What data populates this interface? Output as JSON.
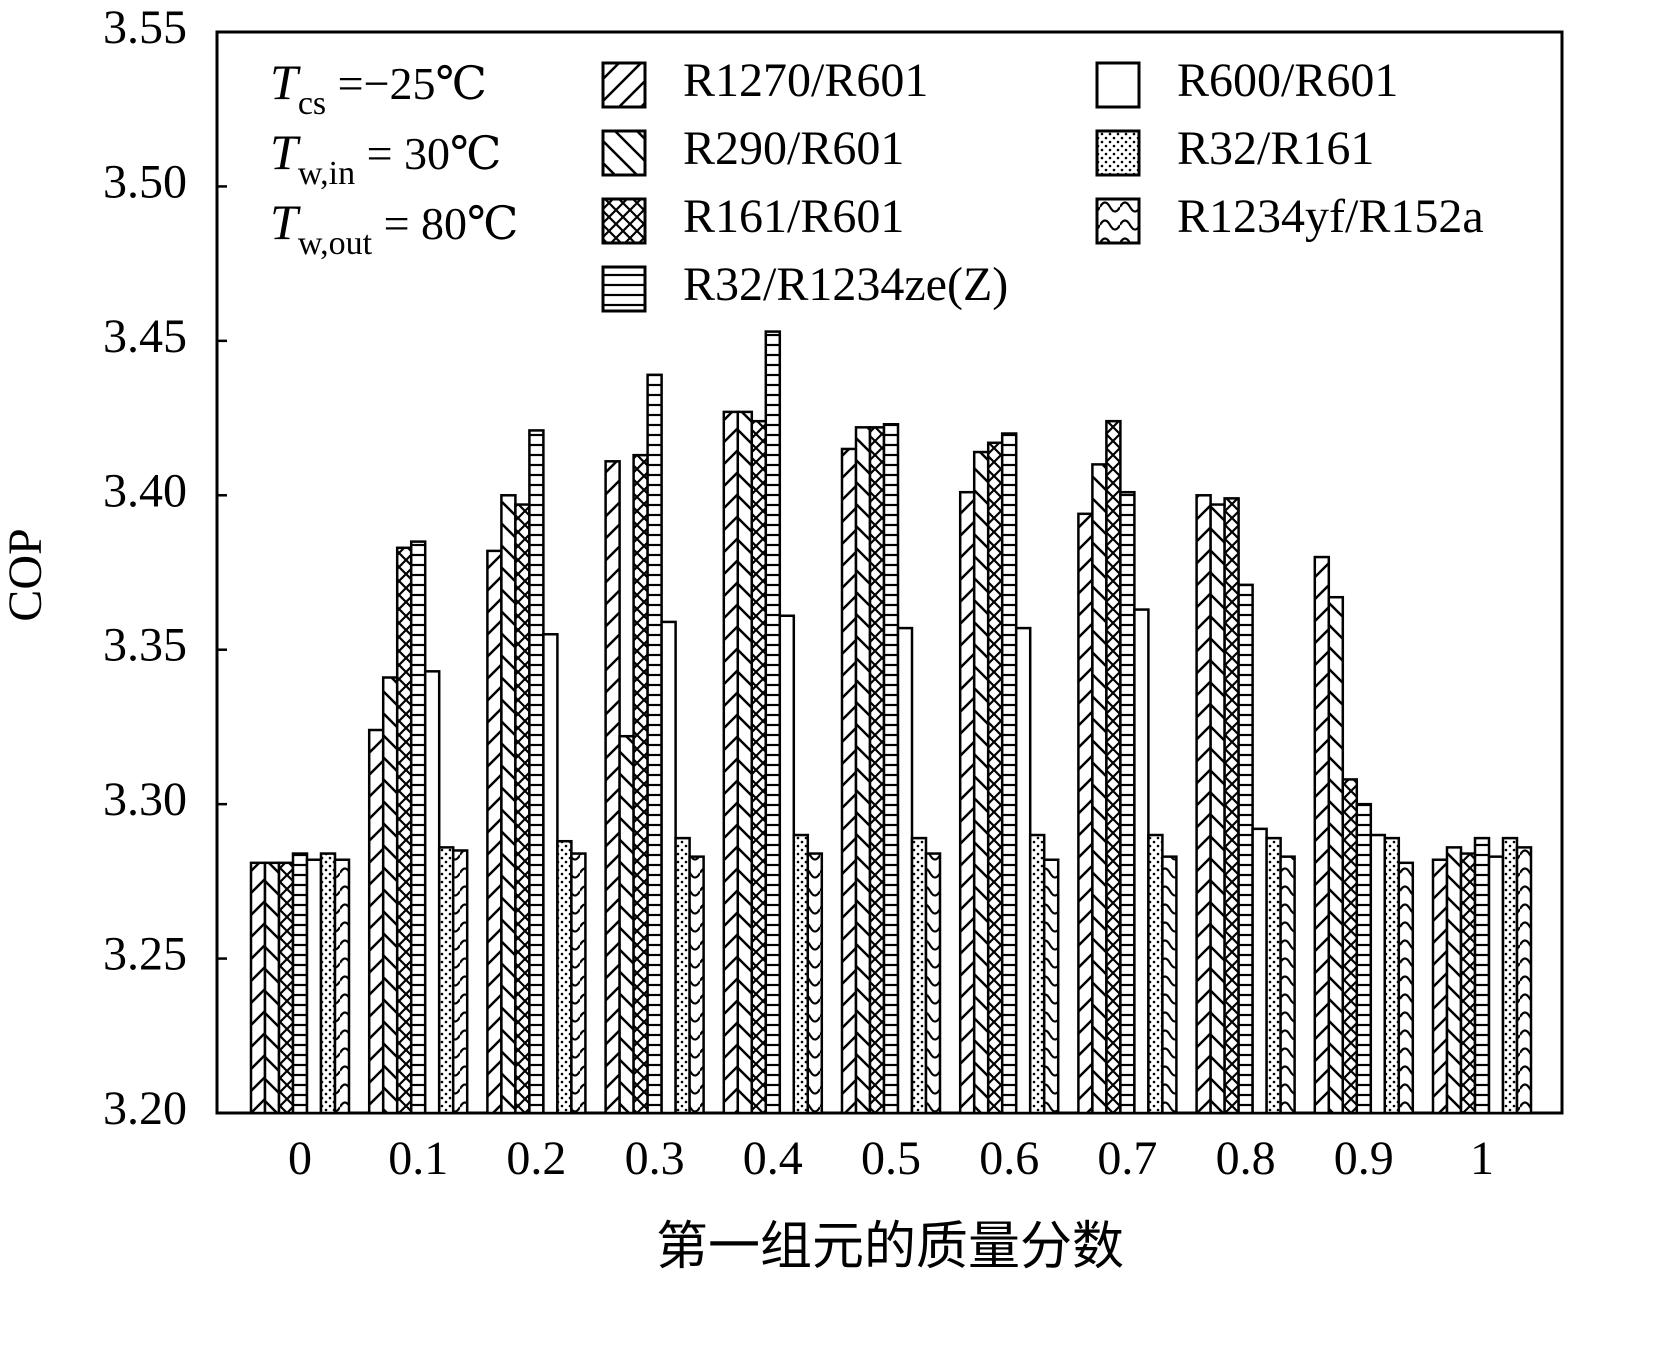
{
  "chart_data": {
    "type": "bar",
    "ylabel": "COP",
    "xlabel": "第一组元的质量分数",
    "annotations": [
      {
        "symbol": "T",
        "sub": "cs",
        "text": " =−25℃"
      },
      {
        "symbol": "T",
        "sub": "w,in",
        "text": " = 30℃"
      },
      {
        "symbol": "T",
        "sub": "w,out",
        "text": " = 80℃"
      }
    ],
    "categories": [
      "0",
      "0.1",
      "0.2",
      "0.3",
      "0.4",
      "0.5",
      "0.6",
      "0.7",
      "0.8",
      "0.9",
      "1"
    ],
    "ylim": [
      3.2,
      3.55
    ],
    "yticks": [
      {
        "value": 3.2,
        "label": "3.20"
      },
      3.25,
      {
        "value": 3.3,
        "label": "3.30"
      },
      3.35,
      {
        "value": 3.4,
        "label": "3.40"
      },
      3.45,
      {
        "value": 3.5,
        "label": "3.50"
      },
      3.55
    ],
    "series": [
      {
        "name": "R1270/R601",
        "color": "#000000",
        "hatch": "diagonal-up",
        "values": [
          3.281,
          3.324,
          3.382,
          3.411,
          3.427,
          3.415,
          3.401,
          3.394,
          3.4,
          3.38,
          3.282
        ]
      },
      {
        "name": "R290/R601",
        "color": "#000000",
        "hatch": "diagonal-down",
        "values": [
          3.281,
          3.341,
          3.4,
          3.322,
          3.427,
          3.422,
          3.414,
          3.41,
          3.397,
          3.367,
          3.286
        ]
      },
      {
        "name": "R161/R601",
        "color": "#000000",
        "hatch": "cross",
        "values": [
          3.281,
          3.383,
          3.397,
          3.413,
          3.424,
          3.422,
          3.417,
          3.424,
          3.399,
          3.308,
          3.284
        ]
      },
      {
        "name": "R32/R1234ze(Z)",
        "color": "#000000",
        "hatch": "horizontal",
        "values": [
          3.284,
          3.385,
          3.421,
          3.439,
          3.453,
          3.423,
          3.42,
          3.401,
          3.371,
          3.3,
          3.289
        ]
      },
      {
        "name": "R600/R601",
        "color": "#000000",
        "hatch": "none",
        "values": [
          3.282,
          3.343,
          3.355,
          3.359,
          3.361,
          3.357,
          3.357,
          3.363,
          3.292,
          3.29,
          3.283
        ]
      },
      {
        "name": "R32/R161",
        "color": "#000000",
        "hatch": "dots",
        "values": [
          3.284,
          3.286,
          3.288,
          3.289,
          3.29,
          3.289,
          3.29,
          3.29,
          3.289,
          3.289,
          3.289
        ]
      },
      {
        "name": "R1234yf/R152a",
        "color": "#000000",
        "hatch": "wave",
        "values": [
          3.282,
          3.285,
          3.284,
          3.283,
          3.284,
          3.284,
          3.282,
          3.283,
          3.283,
          3.281,
          3.286
        ]
      }
    ]
  }
}
